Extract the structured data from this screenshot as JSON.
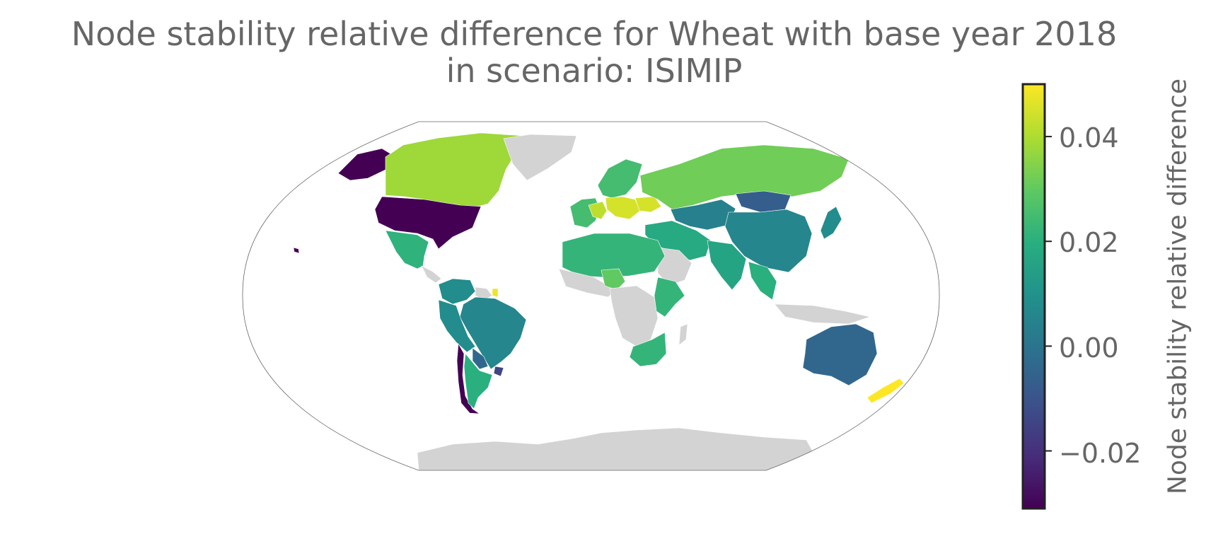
{
  "title_line1": "Node stability relative difference for Wheat with base year 2018",
  "title_line2": "in scenario: ISIMIP",
  "colorbar": {
    "label": "Node stability relative difference",
    "ticks": [
      "0.04",
      "0.02",
      "0.00",
      "−0.02"
    ],
    "tick_values": [
      0.04,
      0.02,
      0.0,
      -0.02
    ],
    "range": [
      -0.031,
      0.05
    ],
    "colormap": "viridis"
  },
  "map": {
    "projection": "Winkel Tripel",
    "no_data_color": "#d3d3d3",
    "regions": [
      {
        "name": "Alaska",
        "value": -0.031
      },
      {
        "name": "Canada",
        "value": 0.038
      },
      {
        "name": "Greenland",
        "value": null
      },
      {
        "name": "United States",
        "value": -0.031
      },
      {
        "name": "Hawaii",
        "value": -0.031
      },
      {
        "name": "Mexico",
        "value": 0.021
      },
      {
        "name": "Central America",
        "value": null
      },
      {
        "name": "Colombia/Venezuela",
        "value": 0.008
      },
      {
        "name": "Guianas",
        "value": null
      },
      {
        "name": "Suriname",
        "value": 0.048
      },
      {
        "name": "Brazil",
        "value": 0.006
      },
      {
        "name": "Peru/Bolivia",
        "value": 0.008
      },
      {
        "name": "Paraguay",
        "value": -0.004
      },
      {
        "name": "Chile",
        "value": -0.031
      },
      {
        "name": "Argentina",
        "value": 0.02
      },
      {
        "name": "Uruguay",
        "value": -0.014
      },
      {
        "name": "Western Europe",
        "value": 0.025
      },
      {
        "name": "France",
        "value": 0.042
      },
      {
        "name": "Scandinavia",
        "value": 0.025
      },
      {
        "name": "Central Europe",
        "value": 0.045
      },
      {
        "name": "Ukraine",
        "value": 0.045
      },
      {
        "name": "Russia",
        "value": 0.032
      },
      {
        "name": "Kazakhstan",
        "value": 0.004
      },
      {
        "name": "Mongolia",
        "value": -0.007
      },
      {
        "name": "China",
        "value": 0.006
      },
      {
        "name": "Japan",
        "value": 0.008
      },
      {
        "name": "Middle East",
        "value": 0.018
      },
      {
        "name": "Arabian Peninsula",
        "value": null
      },
      {
        "name": "India",
        "value": 0.016
      },
      {
        "name": "Southeast Asia",
        "value": 0.02
      },
      {
        "name": "North Africa",
        "value": 0.022
      },
      {
        "name": "West Africa",
        "value": null
      },
      {
        "name": "Nigeria",
        "value": 0.03
      },
      {
        "name": "Central Africa",
        "value": null
      },
      {
        "name": "East Africa",
        "value": 0.022
      },
      {
        "name": "Southern Africa",
        "value": 0.022
      },
      {
        "name": "Madagascar",
        "value": null
      },
      {
        "name": "Indonesia",
        "value": null
      },
      {
        "name": "Australia",
        "value": -0.004
      },
      {
        "name": "New Zealand",
        "value": 0.05
      },
      {
        "name": "Antarctica",
        "value": null
      }
    ]
  }
}
